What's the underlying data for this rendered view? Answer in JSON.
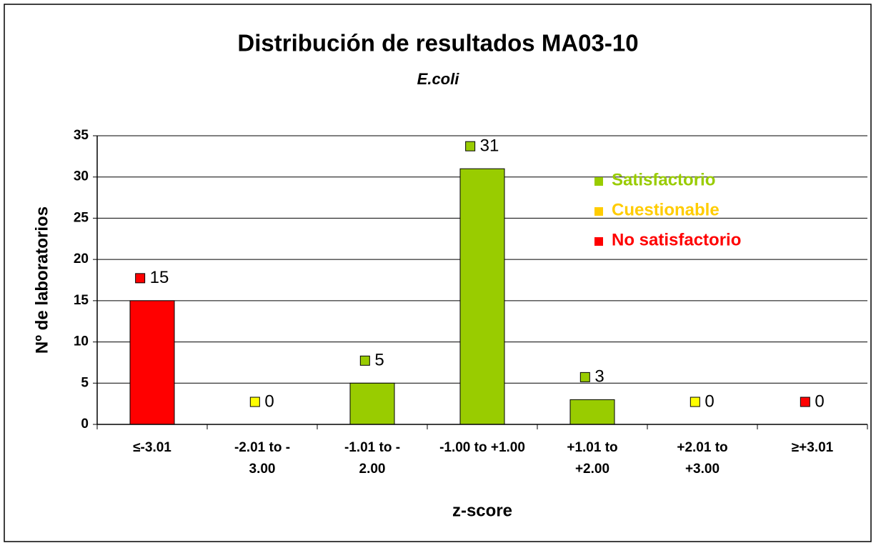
{
  "chart_data": {
    "type": "bar",
    "title": "Distribución de resultados MA03-10",
    "subtitle": "E.coli",
    "y_label": "Nº de laboratorios",
    "x_label": "z-score",
    "categories": [
      "≤-3.01",
      "-2.01 to - 3.00",
      "-1.01 to - 2.00",
      "-1.00 to +1.00",
      "+1.01 to +2.00",
      "+2.01 to +3.00",
      "≥+3.01"
    ],
    "values": [
      15,
      0,
      5,
      31,
      3,
      0,
      0
    ],
    "colors": [
      "#ff0000",
      "#ffff00",
      "#99cc00",
      "#99cc00",
      "#99cc00",
      "#ffff00",
      "#ff0000"
    ],
    "legend": [
      {
        "name": "Satisfactorio",
        "color": "#99cc00"
      },
      {
        "name": "Cuestionable",
        "color": "#ffcc00"
      },
      {
        "name": "No satisfactorio",
        "color": "#ff0000"
      }
    ],
    "ylim": [
      0,
      35
    ],
    "yticks": [
      0,
      5,
      10,
      15,
      20,
      25,
      30,
      35
    ],
    "grid": true
  }
}
